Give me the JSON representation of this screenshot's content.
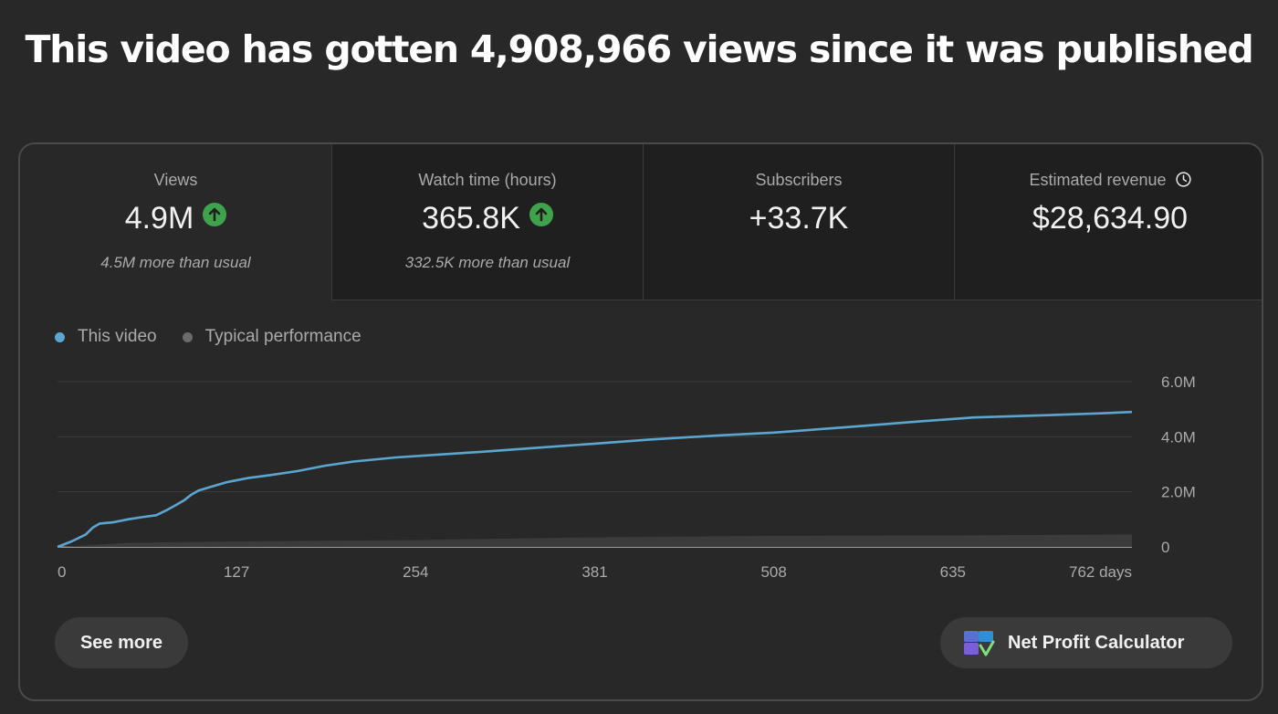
{
  "headline": "This video has gotten 4,908,966 views since it was published",
  "metrics": [
    {
      "label": "Views",
      "value": "4.9M",
      "trend": "up",
      "sub": "4.5M more than usual"
    },
    {
      "label": "Watch time (hours)",
      "value": "365.8K",
      "trend": "up",
      "sub": "332.5K more than usual"
    },
    {
      "label": "Subscribers",
      "value": "+33.7K"
    },
    {
      "label": "Estimated revenue",
      "value": "$28,634.90",
      "icon": "clock-icon"
    }
  ],
  "legend": {
    "this_video": "This video",
    "typical": "Typical performance"
  },
  "colors": {
    "this_video": "#5ba6d1",
    "typical": "#6b6b6b",
    "trend_up": "#3fa34d"
  },
  "chart_data": {
    "type": "line",
    "x_tick_labels": [
      "0",
      "127",
      "254",
      "381",
      "508",
      "635",
      "762 days"
    ],
    "y_tick_labels": [
      "6.0M",
      "4.0M",
      "2.0M",
      "0"
    ],
    "xlim": [
      0,
      762
    ],
    "ylim": [
      0,
      6000000
    ],
    "series": [
      {
        "name": "This video",
        "x": [
          0,
          10,
          20,
          25,
          30,
          40,
          50,
          60,
          70,
          78,
          85,
          90,
          95,
          100,
          110,
          120,
          135,
          150,
          170,
          190,
          210,
          240,
          270,
          300,
          340,
          381,
          420,
          470,
          508,
          560,
          610,
          650,
          700,
          740,
          762
        ],
        "y": [
          0,
          200000,
          450000,
          700000,
          850000,
          900000,
          1000000,
          1080000,
          1150000,
          1350000,
          1550000,
          1700000,
          1900000,
          2050000,
          2200000,
          2350000,
          2500000,
          2600000,
          2750000,
          2950000,
          3100000,
          3250000,
          3350000,
          3450000,
          3600000,
          3750000,
          3900000,
          4050000,
          4150000,
          4350000,
          4550000,
          4700000,
          4780000,
          4850000,
          4900000
        ]
      },
      {
        "name": "Typical performance",
        "x": [
          0,
          50,
          127,
          254,
          381,
          508,
          635,
          762
        ],
        "y": [
          0,
          150000,
          200000,
          250000,
          350000,
          400000,
          420000,
          450000
        ]
      }
    ]
  },
  "buttons": {
    "see_more": "See more",
    "net_profit": "Net Profit Calculator"
  }
}
